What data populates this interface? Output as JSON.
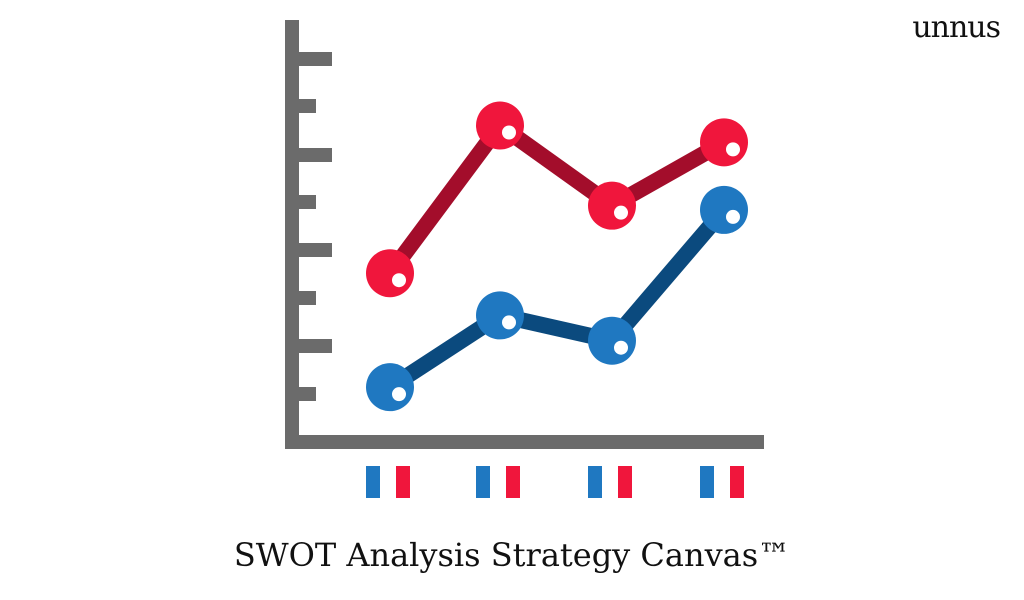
{
  "brand": {
    "logo_text": "unnus"
  },
  "caption": "SWOT Analysis Strategy Canvas™",
  "colors": {
    "axis": "#6b6b6b",
    "red_dot": "#f0163c",
    "red_line": "#a30d2b",
    "blue_dot": "#1f78c1",
    "blue_line": "#0b4a7e"
  },
  "chart_data": {
    "type": "line",
    "categories": [
      "",
      "",
      "",
      ""
    ],
    "ylim": [
      0,
      10
    ],
    "grid": false,
    "legend": "none",
    "series": [
      {
        "color": "#f0163c",
        "line_color": "#a30d2b",
        "values": [
          4.0,
          7.5,
          5.6,
          7.1
        ]
      },
      {
        "color": "#1f78c1",
        "line_color": "#0b4a7e",
        "values": [
          1.3,
          3.0,
          2.4,
          5.5
        ]
      }
    ]
  }
}
